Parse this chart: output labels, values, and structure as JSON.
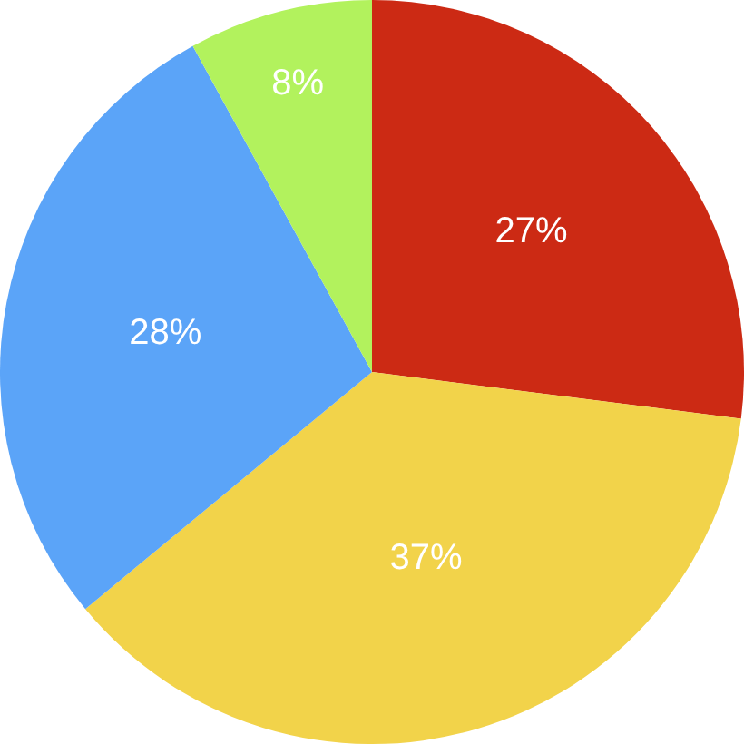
{
  "chart_data": {
    "type": "pie",
    "categories": [
      null,
      null,
      null,
      null
    ],
    "values": [
      27,
      37,
      28,
      8
    ],
    "value_labels": [
      "27%",
      "37%",
      "28%",
      "8%"
    ],
    "colors": [
      "#cc2a14",
      "#f2d34a",
      "#5ba4f8",
      "#b2f25d"
    ],
    "legend": false
  }
}
